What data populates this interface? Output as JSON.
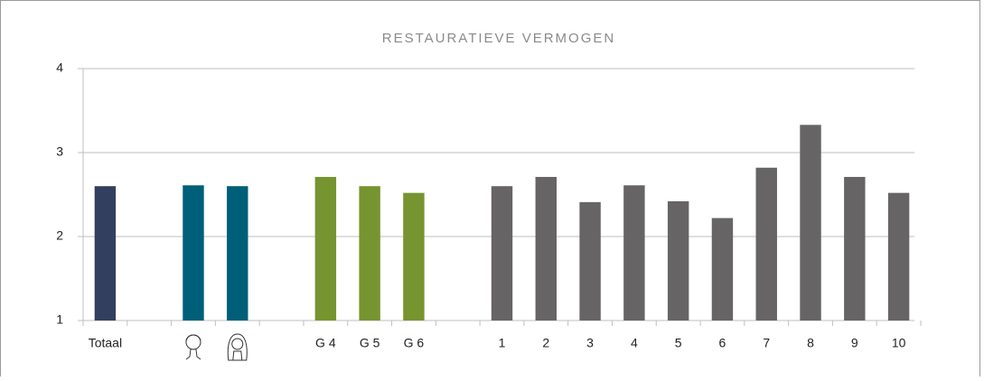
{
  "chart_data": {
    "type": "bar",
    "title": "RESTAURATIEVE VERMOGEN",
    "categories": [
      "Totaal",
      null,
      null,
      null,
      null,
      "G 4",
      "G 5",
      "G 6",
      null,
      "1",
      "2",
      "3",
      "4",
      "5",
      "6",
      "7",
      "8",
      "9",
      "10"
    ],
    "values": [
      2.6,
      null,
      2.61,
      2.6,
      null,
      2.71,
      2.6,
      2.52,
      null,
      2.6,
      2.71,
      2.41,
      2.61,
      2.42,
      2.22,
      2.82,
      3.33,
      2.71,
      2.52
    ],
    "colors": [
      "#333f5f",
      null,
      "#005f78",
      "#005f78",
      null,
      "#76942f",
      "#76942f",
      "#76942f",
      null,
      "#666465",
      "#666465",
      "#666465",
      "#666465",
      "#666465",
      "#666465",
      "#666465",
      "#666465",
      "#666465",
      "#666465"
    ],
    "ylim": [
      1,
      4
    ],
    "yticks": [
      1,
      2,
      3,
      4
    ],
    "grid": true
  }
}
